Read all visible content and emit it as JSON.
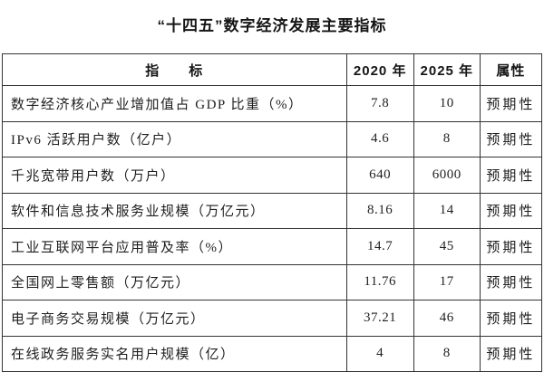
{
  "page": {
    "background_color": "#ffffff",
    "text_color": "#1a1a1a",
    "border_color": "#333333"
  },
  "title": "“十四五”数字经济发展主要指标",
  "table": {
    "headers": {
      "indicator": "指　　标",
      "y2020": "2020 年",
      "y2025": "2025 年",
      "attribute": "属性"
    },
    "rows": [
      {
        "indicator": "数字经济核心产业增加值占 GDP 比重（%）",
        "y2020": "7.8",
        "y2025": "10",
        "attribute": "预期性"
      },
      {
        "indicator": "IPv6 活跃用户数（亿户）",
        "y2020": "4.6",
        "y2025": "8",
        "attribute": "预期性"
      },
      {
        "indicator": "千兆宽带用户数（万户）",
        "y2020": "640",
        "y2025": "6000",
        "attribute": "预期性"
      },
      {
        "indicator": "软件和信息技术服务业规模（万亿元）",
        "y2020": "8.16",
        "y2025": "14",
        "attribute": "预期性"
      },
      {
        "indicator": "工业互联网平台应用普及率（%）",
        "y2020": "14.7",
        "y2025": "45",
        "attribute": "预期性"
      },
      {
        "indicator": "全国网上零售额（万亿元）",
        "y2020": "11.76",
        "y2025": "17",
        "attribute": "预期性"
      },
      {
        "indicator": "电子商务交易规模（万亿元）",
        "y2020": "37.21",
        "y2025": "46",
        "attribute": "预期性"
      },
      {
        "indicator": "在线政务服务实名用户规模（亿）",
        "y2020": "4",
        "y2025": "8",
        "attribute": "预期性"
      }
    ]
  },
  "chart_data": {
    "type": "table",
    "title": "“十四五”数字经济发展主要指标",
    "columns": [
      "指标",
      "2020 年",
      "2025 年",
      "属性"
    ],
    "rows": [
      [
        "数字经济核心产业增加值占 GDP 比重（%）",
        7.8,
        10,
        "预期性"
      ],
      [
        "IPv6 活跃用户数（亿户）",
        4.6,
        8,
        "预期性"
      ],
      [
        "千兆宽带用户数（万户）",
        640,
        6000,
        "预期性"
      ],
      [
        "软件和信息技术服务业规模（万亿元）",
        8.16,
        14,
        "预期性"
      ],
      [
        "工业互联网平台应用普及率（%）",
        14.7,
        45,
        "预期性"
      ],
      [
        "全国网上零售额（万亿元）",
        11.76,
        17,
        "预期性"
      ],
      [
        "电子商务交易规模（万亿元）",
        37.21,
        46,
        "预期性"
      ],
      [
        "在线政务服务实名用户规模（亿）",
        4,
        8,
        "预期性"
      ]
    ]
  }
}
